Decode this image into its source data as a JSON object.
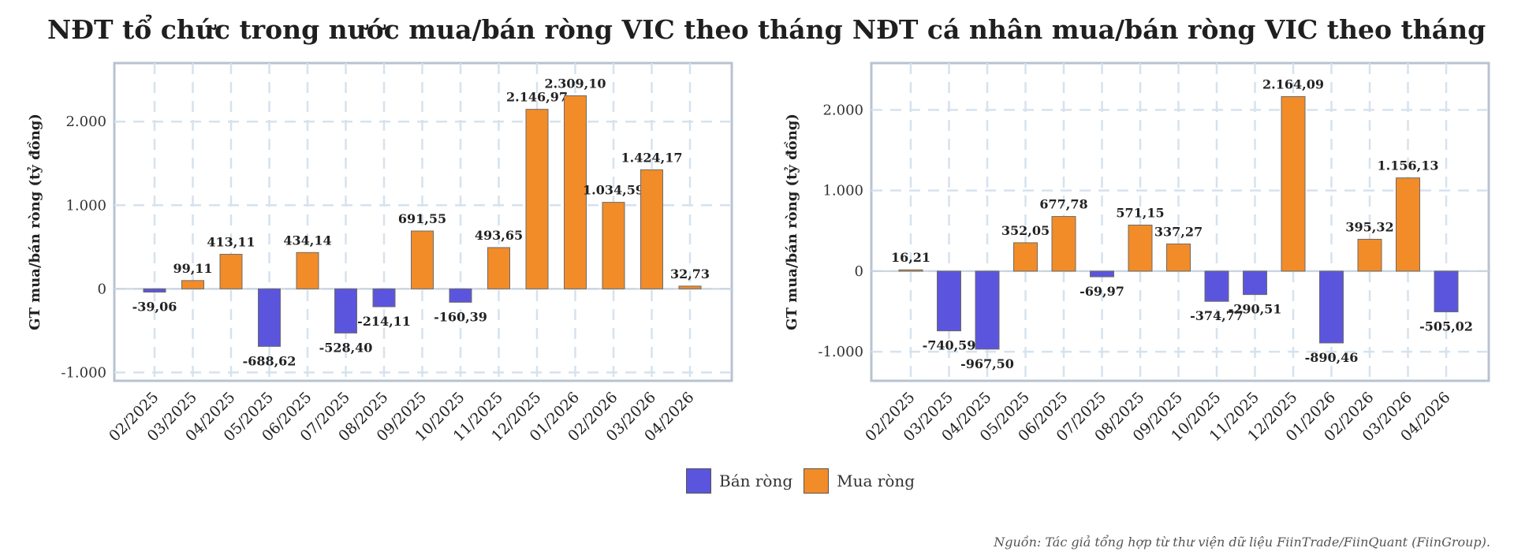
{
  "colors": {
    "sell": "#5b55dd",
    "buy": "#f28c28"
  },
  "legend": {
    "sell_label": "Bán ròng",
    "buy_label": "Mua ròng"
  },
  "source": "Nguồn: Tác giả tổng hợp từ thư viện dữ liệu FiinTrade/FiinQuant (FiinGroup).",
  "chart_data": [
    {
      "type": "bar",
      "title": "NĐT tổ chức trong nước mua/bán ròng VIC theo tháng",
      "ylabel": "GT mua/bán ròng (tỷ đồng)",
      "xlabel": "",
      "categories": [
        "02/2025",
        "03/2025",
        "04/2025",
        "05/2025",
        "06/2025",
        "07/2025",
        "08/2025",
        "09/2025",
        "10/2025",
        "11/2025",
        "12/2025",
        "01/2026",
        "02/2026",
        "03/2026",
        "04/2026"
      ],
      "values": [
        -39.06,
        99.11,
        413.11,
        -688.62,
        434.14,
        -528.4,
        -214.11,
        691.55,
        -160.39,
        493.65,
        2146.97,
        2309.1,
        1034.59,
        1424.17,
        32.73
      ],
      "labels": [
        "-39,06",
        "99,11",
        "413,11",
        "-688,62",
        "434,14",
        "-528,40",
        "-214,11",
        "691,55",
        "-160,39",
        "493,65",
        "2.146,97",
        "2.309,10",
        "1.034,59",
        "1.424,17",
        "32,73"
      ],
      "yticks": [
        -1000,
        0,
        1000,
        2000
      ],
      "ytick_labels": [
        "-1.000",
        "0",
        "1.000",
        "2.000"
      ],
      "ylim": [
        -1100,
        2700
      ],
      "grid": true
    },
    {
      "type": "bar",
      "title": "NĐT cá nhân mua/bán ròng VIC theo tháng",
      "ylabel": "GT mua/bán ròng (tỷ đồng)",
      "xlabel": "",
      "categories": [
        "02/2025",
        "03/2025",
        "04/2025",
        "05/2025",
        "06/2025",
        "07/2025",
        "08/2025",
        "09/2025",
        "10/2025",
        "11/2025",
        "12/2025",
        "01/2026",
        "02/2026",
        "03/2026",
        "04/2026"
      ],
      "values": [
        16.21,
        -740.59,
        -967.5,
        352.05,
        677.78,
        -69.97,
        571.15,
        337.27,
        -374.77,
        -290.51,
        2164.09,
        -890.46,
        395.32,
        1156.13,
        -505.02
      ],
      "labels": [
        "16,21",
        "-740,59",
        "-967,50",
        "352,05",
        "677,78",
        "-69,97",
        "571,15",
        "337,27",
        "-374,77",
        "-290,51",
        "2.164,09",
        "-890,46",
        "395,32",
        "1.156,13",
        "-505,02"
      ],
      "yticks": [
        -1000,
        0,
        1000,
        2000
      ],
      "ytick_labels": [
        "-1.000",
        "0",
        "1.000",
        "2.000"
      ],
      "ylim": [
        -1360,
        2580
      ],
      "grid": true
    }
  ]
}
